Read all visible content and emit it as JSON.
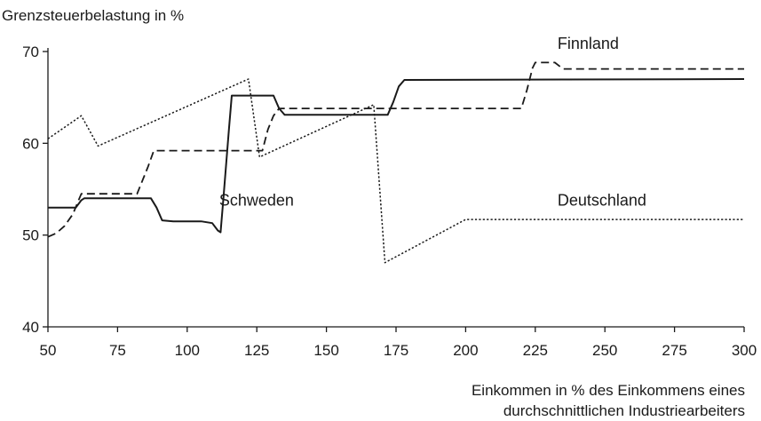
{
  "chart_data": {
    "type": "line",
    "ylabel": "Grenzsteuerbelastung in %",
    "xlabel_line1": "Einkommen in % des Einkommens eines",
    "xlabel_line2": "durchschnittlichen Industriearbeiters",
    "xlim": [
      50,
      300
    ],
    "ylim": [
      40,
      70
    ],
    "xticks": [
      50,
      75,
      100,
      125,
      150,
      175,
      200,
      225,
      250,
      275,
      300
    ],
    "yticks": [
      40,
      50,
      60,
      70
    ],
    "grid": false,
    "series": [
      {
        "name": "Schweden",
        "style": "solid",
        "color": "#1a1a1a",
        "label_at": [
          111.5,
          53.2
        ],
        "points": [
          [
            50,
            53
          ],
          [
            57,
            53
          ],
          [
            60,
            53
          ],
          [
            62,
            53.8
          ],
          [
            63,
            54
          ],
          [
            87,
            54
          ],
          [
            89,
            53
          ],
          [
            91,
            51.6
          ],
          [
            95,
            51.5
          ],
          [
            105,
            51.5
          ],
          [
            109,
            51.3
          ],
          [
            111,
            50.5
          ],
          [
            112,
            50.3
          ],
          [
            113,
            54
          ],
          [
            115,
            61.5
          ],
          [
            116,
            65.2
          ],
          [
            131,
            65.2
          ],
          [
            133,
            63.8
          ],
          [
            135,
            63.1
          ],
          [
            172,
            63.1
          ],
          [
            174,
            64.5
          ],
          [
            176,
            66.2
          ],
          [
            178,
            66.9
          ],
          [
            300,
            67
          ]
        ]
      },
      {
        "name": "Finnland",
        "style": "dashed",
        "color": "#1a1a1a",
        "label_at": [
          233,
          70.3
        ],
        "points": [
          [
            50,
            49.8
          ],
          [
            53,
            50.2
          ],
          [
            56,
            51
          ],
          [
            59,
            52.3
          ],
          [
            61,
            53.8
          ],
          [
            62,
            54.5
          ],
          [
            82,
            54.5
          ],
          [
            86,
            57.5
          ],
          [
            88,
            59.2
          ],
          [
            124,
            59.2
          ],
          [
            127,
            59.2
          ],
          [
            129,
            61.5
          ],
          [
            131,
            63
          ],
          [
            133,
            63.8
          ],
          [
            220,
            63.8
          ],
          [
            222,
            65.8
          ],
          [
            224,
            68.2
          ],
          [
            225,
            68.8
          ],
          [
            232,
            68.8
          ],
          [
            235,
            68.1
          ],
          [
            300,
            68.1
          ]
        ]
      },
      {
        "name": "Deutschland",
        "style": "dotted",
        "color": "#1a1a1a",
        "label_at": [
          233,
          53.2
        ],
        "points": [
          [
            50,
            60.5
          ],
          [
            62,
            63
          ],
          [
            68,
            59.7
          ],
          [
            122,
            67
          ],
          [
            126,
            58.5
          ],
          [
            167,
            64.2
          ],
          [
            171,
            47
          ],
          [
            200,
            51.7
          ],
          [
            300,
            51.7
          ]
        ]
      }
    ]
  }
}
